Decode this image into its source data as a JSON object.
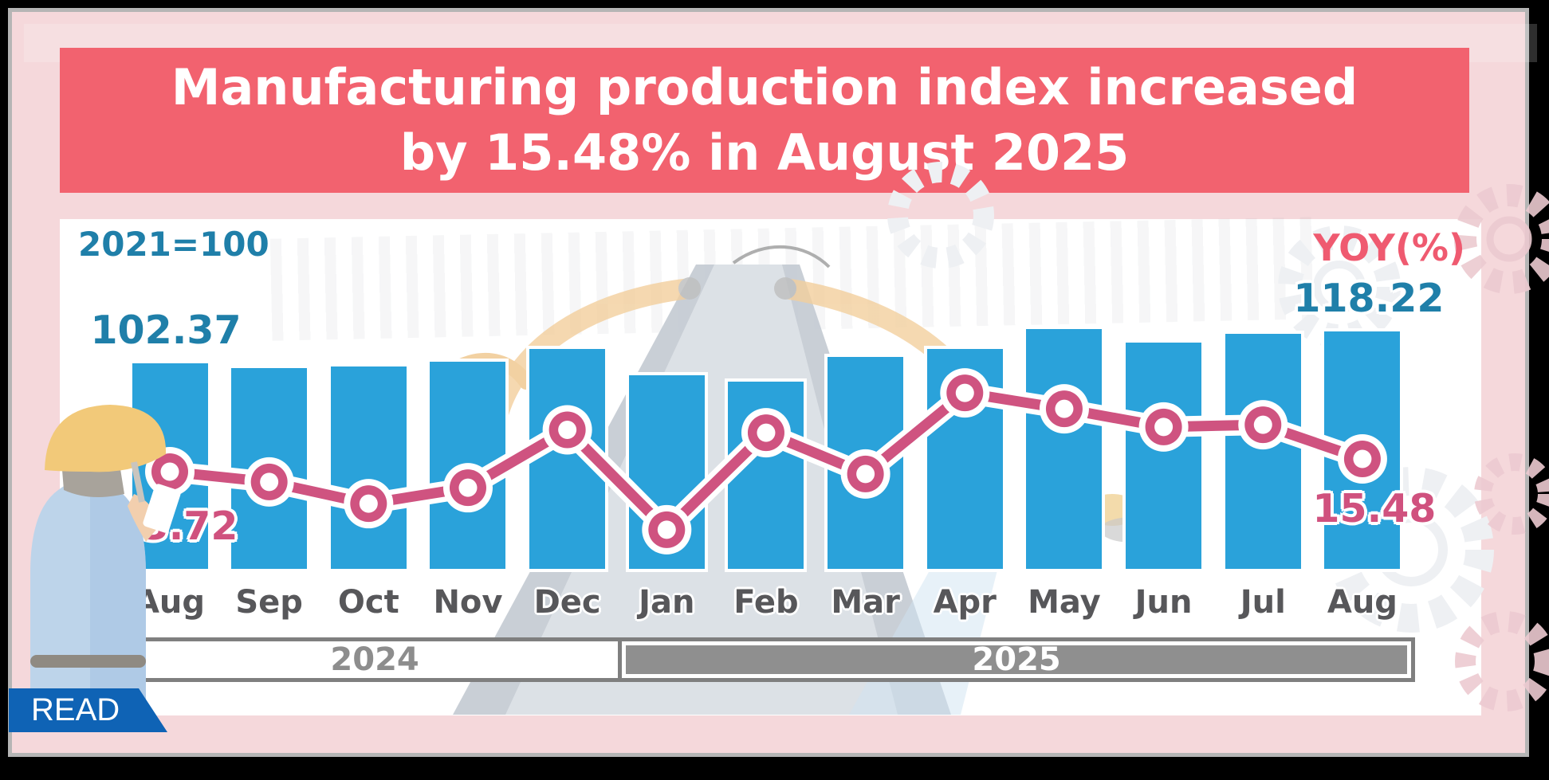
{
  "title": {
    "line1": "Manufacturing production index increased",
    "line2": "by 15.48% in August 2025"
  },
  "chart": {
    "left_axis_note": "2021=100",
    "right_axis_note": "YOY(%)",
    "callouts": {
      "first_index": "102.37",
      "last_index": "118.22",
      "first_yoy": "13.72",
      "last_yoy": "15.48"
    }
  },
  "chart_data": {
    "type": "bar+line",
    "categories": [
      "Aug",
      "Sep",
      "Oct",
      "Nov",
      "Dec",
      "Jan",
      "Feb",
      "Mar",
      "Apr",
      "May",
      "Jun",
      "Jul",
      "Aug"
    ],
    "year_groups": [
      {
        "label": "2024",
        "span": 5
      },
      {
        "label": "2025",
        "span": 8
      }
    ],
    "series": [
      {
        "name": "Manufacturing production index (2021=100)",
        "type": "bar",
        "color": "#2aa2da",
        "values": [
          102.37,
          100.0,
          100.8,
          103.2,
          109.5,
          96.4,
          93.3,
          105.6,
          109.5,
          119.4,
          112.7,
          117.1,
          118.22
        ],
        "labeled_points": {
          "0": "102.37",
          "12": "118.22"
        },
        "values_estimated_except_labeled": true
      },
      {
        "name": "YOY(%)",
        "type": "line",
        "color": "#cf5380",
        "values": [
          13.72,
          12.3,
          9.3,
          11.5,
          19.5,
          5.7,
          19.1,
          13.4,
          24.6,
          22.4,
          19.9,
          20.2,
          15.48
        ],
        "labeled_points": {
          "0": "13.72",
          "12": "15.48"
        },
        "values_estimated_except_labeled": true
      }
    ],
    "xlabel": "",
    "ylabel_left": "2021=100",
    "ylabel_right": "YOY(%)",
    "grid": false,
    "legend_position": "none"
  },
  "read_button": {
    "label": "READ"
  },
  "colors": {
    "background_pink": "#f5d8db",
    "banner_red": "#f2626f",
    "bar_blue": "#2aa2da",
    "line_pink": "#cf5380",
    "index_text_teal": "#1f7fa9",
    "yoy_text_pink": "#ef5a70",
    "month_text_gray": "#57575a",
    "year_band_gray": "#8f8f8f",
    "read_button_blue": "#0f63b5",
    "frame_gray": "#b5b5b5",
    "frame_black": "#000000"
  }
}
